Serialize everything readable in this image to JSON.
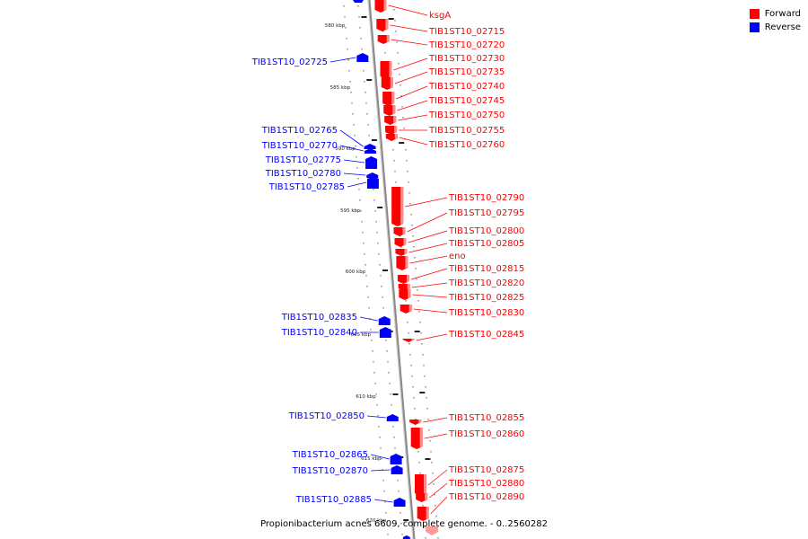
{
  "caption": "Propionibacterium acnes 6609, complete genome. - 0..2560282",
  "colors": {
    "forward": "#ff0000",
    "reverse": "#0000ff",
    "backbone": "#808080"
  },
  "legend": [
    {
      "label": "Forward",
      "color": "#ff0000"
    },
    {
      "label": "Reverse",
      "color": "#0000ff"
    }
  ],
  "scale_ticks": [
    "580 kbp",
    "585 kbp",
    "590 kbp",
    "595 kbp",
    "600 kbp",
    "605 kbp",
    "610 kbp",
    "615 kbp",
    "620 kbp"
  ],
  "forward_genes": [
    "ksgA",
    "TIB1ST10_02715",
    "TIB1ST10_02720",
    "TIB1ST10_02730",
    "TIB1ST10_02735",
    "TIB1ST10_02740",
    "TIB1ST10_02745",
    "TIB1ST10_02750",
    "TIB1ST10_02755",
    "TIB1ST10_02760",
    "TIB1ST10_02790",
    "TIB1ST10_02795",
    "TIB1ST10_02800",
    "TIB1ST10_02805",
    "eno",
    "TIB1ST10_02815",
    "TIB1ST10_02820",
    "TIB1ST10_02825",
    "TIB1ST10_02830",
    "TIB1ST10_02845",
    "TIB1ST10_02855",
    "TIB1ST10_02860",
    "TIB1ST10_02875",
    "TIB1ST10_02880",
    "TIB1ST10_02890"
  ],
  "reverse_genes": [
    "TIB1ST10_02725",
    "TIB1ST10_02765",
    "TIB1ST10_02770",
    "TIB1ST10_02775",
    "TIB1ST10_02780",
    "TIB1ST10_02785",
    "TIB1ST10_02835",
    "TIB1ST10_02840",
    "TIB1ST10_02850",
    "TIB1ST10_02865",
    "TIB1ST10_02870",
    "TIB1ST10_02885"
  ]
}
